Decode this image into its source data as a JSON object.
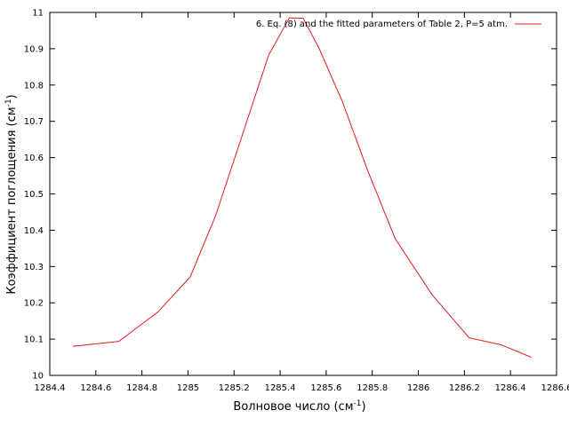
{
  "chart_data": {
    "type": "line",
    "xlabel": "Волновое число (см",
    "xlabel_sup": "-1",
    "xlabel_end": ")",
    "ylabel": "Коэффициент поглощения (см",
    "ylabel_sup": "-1",
    "ylabel_end": ")",
    "xlim": [
      1284.4,
      1286.6
    ],
    "ylim": [
      10,
      11
    ],
    "xticks": [
      1284.4,
      1284.6,
      1284.8,
      1285,
      1285.2,
      1285.4,
      1285.6,
      1285.8,
      1286,
      1286.2,
      1286.4,
      1286.6
    ],
    "xtick_labels": [
      "1284.4",
      "1284.6",
      "1284.8",
      "1285",
      "1285.2",
      "1285.4",
      "1285.6",
      "1285.8",
      "1286",
      "1286.2",
      "1286.4",
      "1286.6"
    ],
    "yticks": [
      10,
      10.1,
      10.2,
      10.3,
      10.4,
      10.5,
      10.6,
      10.7,
      10.8,
      10.9,
      11
    ],
    "ytick_labels": [
      "10",
      "10.1",
      "10.2",
      "10.3",
      "10.4",
      "10.5",
      "10.6",
      "10.7",
      "10.8",
      "10.9",
      "11"
    ],
    "grid": false,
    "legend_position": "top-right",
    "series": [
      {
        "name": "6. Eq. (8) and the fitted parameters of Table 2, P=5 atm.",
        "color": "#e41a1c",
        "x": [
          1284.5,
          1284.7,
          1284.87,
          1285.01,
          1285.12,
          1285.24,
          1285.35,
          1285.44,
          1285.5,
          1285.57,
          1285.67,
          1285.78,
          1285.9,
          1286.06,
          1286.22,
          1286.36,
          1286.49
        ],
        "y": [
          10.08,
          10.094,
          10.175,
          10.272,
          10.44,
          10.67,
          10.882,
          10.985,
          10.984,
          10.9,
          10.755,
          10.565,
          10.376,
          10.222,
          10.104,
          10.084,
          10.05
        ]
      }
    ]
  }
}
